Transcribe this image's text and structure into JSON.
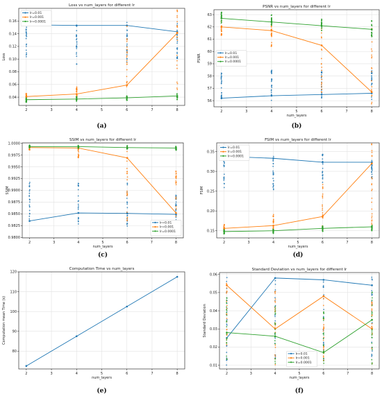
{
  "colors": {
    "lr_0.01": "#1f77b4",
    "lr_0.001": "#ff7f0e",
    "lr_0.0001": "#2ca02c"
  },
  "chart_data": [
    {
      "type": "line",
      "caption": "(a)",
      "title": "Loss vs num_layers for different lr",
      "xlabel": "",
      "ylabel": "Loss",
      "x": [
        2,
        4,
        6,
        8
      ],
      "xlim": [
        1.7,
        8.3
      ],
      "ylim": [
        0.027,
        0.18
      ],
      "xticks": [
        2,
        3,
        4,
        5,
        6,
        7,
        8
      ],
      "yticks": [
        "0.04",
        "0.06",
        "0.08",
        "0.10",
        "0.12",
        "0.14",
        "0.16"
      ],
      "ytick_values": [
        0.04,
        0.06,
        0.08,
        0.1,
        0.12,
        0.14,
        0.16
      ],
      "grid": true,
      "legend": "top-left",
      "series": [
        {
          "name": "lr=0.01",
          "color": "#1f77b4",
          "values": [
            0.154,
            0.153,
            0.153,
            0.143
          ],
          "scatter_range": [
            [
              0.097,
              0.158
            ],
            [
              0.091,
              0.158
            ],
            [
              0.095,
              0.158
            ],
            [
              0.095,
              0.158
            ]
          ]
        },
        {
          "name": "lr=0.001",
          "color": "#ff7f0e",
          "values": [
            0.041,
            0.045,
            0.059,
            0.141
          ],
          "scatter_range": [
            [
              0.037,
              0.046
            ],
            [
              0.037,
              0.058
            ],
            [
              0.034,
              0.155
            ],
            [
              0.048,
              0.178
            ]
          ]
        },
        {
          "name": "lr=0.0001",
          "color": "#2ca02c",
          "values": [
            0.036,
            0.037,
            0.039,
            0.042
          ],
          "scatter_range": [
            [
              0.032,
              0.04
            ],
            [
              0.033,
              0.041
            ],
            [
              0.034,
              0.042
            ],
            [
              0.036,
              0.046
            ]
          ]
        }
      ]
    },
    {
      "type": "line",
      "caption": "(b)",
      "title": "PSNR vs num_layers for different lr",
      "xlabel": "num_layers",
      "ylabel": "PSNR",
      "x": [
        2,
        4,
        6,
        8
      ],
      "xlim": [
        1.7,
        8.3
      ],
      "ylim": [
        55.5,
        63.4
      ],
      "xticks": [
        2,
        3,
        4,
        5,
        6,
        7,
        8
      ],
      "yticks": [
        "56",
        "57",
        "58",
        "59",
        "60",
        "61",
        "62",
        "63"
      ],
      "ytick_values": [
        56,
        57,
        58,
        59,
        60,
        61,
        62,
        63
      ],
      "grid": true,
      "legend": "center-left",
      "series": [
        {
          "name": "lr=0.01",
          "color": "#1f77b4",
          "values": [
            56.2,
            56.4,
            56.5,
            56.6
          ],
          "scatter_range": [
            [
              55.9,
              58.5
            ],
            [
              56.0,
              58.5
            ],
            [
              56.0,
              58.5
            ],
            [
              56.1,
              58.5
            ]
          ]
        },
        {
          "name": "lr=0.001",
          "color": "#ff7f0e",
          "values": [
            62.0,
            61.7,
            60.5,
            56.7
          ],
          "scatter_range": [
            [
              61.3,
              62.6
            ],
            [
              60.4,
              62.3
            ],
            [
              56.3,
              62.0
            ],
            [
              55.6,
              62.3
            ]
          ]
        },
        {
          "name": "lr=0.0001",
          "color": "#2ca02c",
          "values": [
            62.7,
            62.4,
            62.1,
            61.8
          ],
          "scatter_range": [
            [
              62.3,
              63.2
            ],
            [
              62.1,
              63.0
            ],
            [
              61.7,
              62.7
            ],
            [
              61.2,
              62.6
            ]
          ]
        }
      ]
    },
    {
      "type": "line",
      "caption": "(c)",
      "title": "SSIM vs num_layers for different lr",
      "xlabel": "num_layers",
      "ylabel": "SSIM",
      "x": [
        2,
        4,
        6,
        8
      ],
      "xlim": [
        1.7,
        8.3
      ],
      "ylim": [
        0.9799,
        1.0001
      ],
      "xticks": [
        2,
        3,
        4,
        5,
        6,
        7,
        8
      ],
      "yticks": [
        "0.9800",
        "0.9825",
        "0.9850",
        "0.9875",
        "0.9900",
        "0.9925",
        "0.9950",
        "0.9975",
        "1.0000"
      ],
      "ytick_values": [
        0.98,
        0.9825,
        0.985,
        0.9875,
        0.99,
        0.9925,
        0.995,
        0.9975,
        1.0
      ],
      "grid": true,
      "legend": "bottom-right",
      "series": [
        {
          "name": "lr=0.01",
          "color": "#1f77b4",
          "values": [
            0.9835,
            0.9852,
            0.9851,
            0.9849
          ],
          "scatter_range": [
            [
              0.9822,
              0.992
            ],
            [
              0.9826,
              0.9918
            ],
            [
              0.9822,
              0.992
            ],
            [
              0.9824,
              0.9895
            ]
          ]
        },
        {
          "name": "lr=0.001",
          "color": "#ff7f0e",
          "values": [
            0.9991,
            0.999,
            0.9969,
            0.9852
          ],
          "scatter_range": [
            [
              0.9986,
              0.9995
            ],
            [
              0.9966,
              0.9995
            ],
            [
              0.9822,
              0.9992
            ],
            [
              0.9808,
              0.9962
            ]
          ]
        },
        {
          "name": "lr=0.0001",
          "color": "#2ca02c",
          "values": [
            0.9993,
            0.9993,
            0.9991,
            0.999
          ],
          "scatter_range": [
            [
              0.999,
              0.9996
            ],
            [
              0.9989,
              0.9996
            ],
            [
              0.9987,
              0.9995
            ],
            [
              0.9985,
              0.9994
            ]
          ]
        }
      ]
    },
    {
      "type": "line",
      "caption": "(d)",
      "title": "FSIM vs num_layers for different lr",
      "xlabel": "num_layers",
      "ylabel": "FSIM",
      "x": [
        2,
        4,
        6,
        8
      ],
      "xlim": [
        1.7,
        8.3
      ],
      "ylim": [
        0.132,
        0.372
      ],
      "xticks": [
        2,
        3,
        4,
        5,
        6,
        7,
        8
      ],
      "yticks": [
        "0.15",
        "0.20",
        "0.25",
        "0.30",
        "0.35"
      ],
      "ytick_values": [
        0.15,
        0.2,
        0.25,
        0.3,
        0.35
      ],
      "grid": true,
      "legend": "top-left",
      "series": [
        {
          "name": "lr=0.01",
          "color": "#1f77b4",
          "values": [
            0.338,
            0.333,
            0.323,
            0.323
          ],
          "scatter_range": [
            [
              0.253,
              0.347
            ],
            [
              0.25,
              0.346
            ],
            [
              0.27,
              0.345
            ],
            [
              0.28,
              0.33
            ]
          ]
        },
        {
          "name": "lr=0.001",
          "color": "#ff7f0e",
          "values": [
            0.156,
            0.163,
            0.186,
            0.32
          ],
          "scatter_range": [
            [
              0.148,
              0.166
            ],
            [
              0.148,
              0.195
            ],
            [
              0.15,
              0.27
            ],
            [
              0.16,
              0.372
            ]
          ]
        },
        {
          "name": "lr=0.0001",
          "color": "#2ca02c",
          "values": [
            0.148,
            0.15,
            0.156,
            0.16
          ],
          "scatter_range": [
            [
              0.142,
              0.153
            ],
            [
              0.143,
              0.155
            ],
            [
              0.147,
              0.162
            ],
            [
              0.15,
              0.167
            ]
          ]
        }
      ]
    },
    {
      "type": "line",
      "caption": "(e)",
      "title": "Computation Time vs num_layers",
      "xlabel": "num_layers",
      "ylabel": "Computation mean Time (s)",
      "x": [
        2,
        4,
        6,
        8
      ],
      "xlim": [
        1.7,
        8.3
      ],
      "ylim": [
        71,
        120
      ],
      "xticks": [
        2,
        3,
        4,
        5,
        6,
        7,
        8
      ],
      "yticks": [
        "80",
        "90",
        "100",
        "110",
        "120"
      ],
      "ytick_values": [
        80,
        90,
        100,
        110,
        120
      ],
      "grid": true,
      "legend": "none",
      "series": [
        {
          "name": "",
          "color": "#1f77b4",
          "values": [
            72.5,
            87.5,
            102.5,
            117.5
          ]
        }
      ]
    },
    {
      "type": "line",
      "caption": "(f)",
      "title": "Standard Deviation vs num_layers for different lr",
      "xlabel": "num_layers",
      "ylabel": "Standard Deviation",
      "x": [
        2,
        4,
        6,
        8
      ],
      "xlim": [
        1.7,
        8.3
      ],
      "ylim": [
        0.008,
        0.061
      ],
      "xticks": [
        2,
        3,
        4,
        5,
        6,
        7,
        8
      ],
      "yticks": [
        "0.01",
        "0.02",
        "0.03",
        "0.04",
        "0.05",
        "0.06"
      ],
      "ytick_values": [
        0.01,
        0.02,
        0.03,
        0.04,
        0.05,
        0.06
      ],
      "grid": true,
      "legend": "bottom-center",
      "series": [
        {
          "name": "lr=0.01",
          "color": "#1f77b4",
          "values": [
            0.025,
            0.058,
            0.057,
            0.054
          ],
          "scatter_range": [
            [
              0.01,
              0.059
            ],
            [
              0.01,
              0.059
            ],
            [
              0.012,
              0.058
            ],
            [
              0.012,
              0.059
            ]
          ]
        },
        {
          "name": "lr=0.001",
          "color": "#ff7f0e",
          "values": [
            0.054,
            0.03,
            0.048,
            0.03
          ],
          "scatter_range": [
            [
              0.01,
              0.056
            ],
            [
              0.01,
              0.052
            ],
            [
              0.01,
              0.05
            ],
            [
              0.01,
              0.045
            ]
          ]
        },
        {
          "name": "lr=0.0001",
          "color": "#2ca02c",
          "values": [
            0.028,
            0.026,
            0.017,
            0.035
          ],
          "scatter_range": [
            [
              0.01,
              0.048
            ],
            [
              0.01,
              0.045
            ],
            [
              0.01,
              0.04
            ],
            [
              0.01,
              0.052
            ]
          ]
        }
      ]
    }
  ]
}
